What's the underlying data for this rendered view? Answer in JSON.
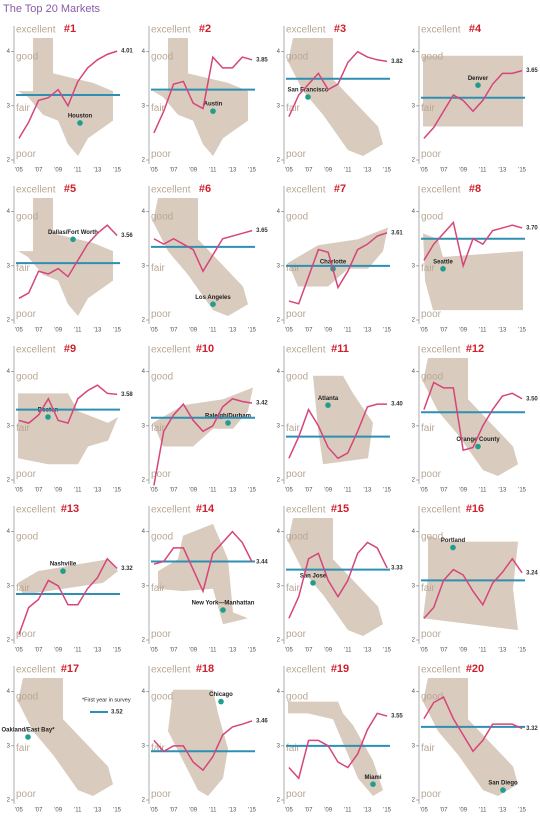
{
  "chart_data": {
    "type": "line",
    "title": "The Top 20 Markets",
    "x": [
      2005,
      2006,
      2007,
      2008,
      2009,
      2010,
      2011,
      2012,
      2013,
      2014,
      2015
    ],
    "xlim": [
      2004.5,
      2015.5
    ],
    "xticks": [
      {
        "value": 2005,
        "label": "'05"
      },
      {
        "value": 2007,
        "label": "'07"
      },
      {
        "value": 2009,
        "label": "'09"
      },
      {
        "value": 2011,
        "label": "'11"
      },
      {
        "value": 2013,
        "label": "'13"
      },
      {
        "value": 2015,
        "label": "'15"
      }
    ],
    "ylim": [
      2,
      4.4
    ],
    "yticks": [
      2,
      3,
      4
    ],
    "rating_labels": [
      {
        "value": 4.4,
        "label": "excellent"
      },
      {
        "value": 3.9,
        "label": "good"
      },
      {
        "value": 2.95,
        "label": "fair"
      },
      {
        "value": 2.1,
        "label": "poor"
      }
    ],
    "line_color": "#d6457a",
    "avg_color": "#2e8fb3",
    "dot_color": "#1f9e8e",
    "panels": [
      {
        "rank": "#1",
        "city": "Houston",
        "values": [
          2.4,
          2.7,
          3.1,
          3.15,
          3.3,
          3.0,
          3.45,
          3.7,
          3.85,
          3.95,
          4.01
        ],
        "label": "4.01",
        "avg": 3.2
      },
      {
        "rank": "#2",
        "city": "Austin",
        "values": [
          2.5,
          2.9,
          3.4,
          3.45,
          3.05,
          2.95,
          3.9,
          3.7,
          3.7,
          3.9,
          3.85
        ],
        "label": "3.85",
        "avg": 3.3
      },
      {
        "rank": "#3",
        "city": "San Francisco",
        "values": [
          2.8,
          3.2,
          3.4,
          3.6,
          3.3,
          3.4,
          3.8,
          4.0,
          3.9,
          3.85,
          3.82
        ],
        "label": "3.82",
        "avg": 3.5
      },
      {
        "rank": "#4",
        "city": "Denver",
        "values": [
          2.4,
          2.6,
          2.9,
          3.2,
          3.1,
          2.9,
          3.1,
          3.4,
          3.6,
          3.6,
          3.65
        ],
        "label": "3.65",
        "avg": 3.15
      },
      {
        "rank": "#5",
        "city": "Dallas/Fort Worth",
        "values": [
          2.4,
          2.5,
          2.9,
          2.85,
          2.95,
          2.8,
          3.1,
          3.4,
          3.6,
          3.75,
          3.56
        ],
        "label": "3.56",
        "avg": 3.05
      },
      {
        "rank": "#6",
        "city": "Los Angeles",
        "values": [
          3.5,
          3.4,
          3.5,
          3.4,
          3.3,
          2.9,
          3.2,
          3.5,
          3.55,
          3.6,
          3.65
        ],
        "label": "3.65",
        "avg": 3.35
      },
      {
        "rank": "#7",
        "city": "Charlotte",
        "values": [
          2.35,
          2.3,
          2.8,
          3.3,
          3.25,
          2.6,
          2.9,
          3.3,
          3.4,
          3.55,
          3.61
        ],
        "label": "3.61",
        "avg": 3.0
      },
      {
        "rank": "#8",
        "city": "Seattle",
        "values": [
          3.1,
          3.4,
          3.6,
          3.8,
          3.0,
          3.5,
          3.4,
          3.65,
          3.7,
          3.75,
          3.7
        ],
        "label": "3.70",
        "avg": 3.5
      },
      {
        "rank": "#9",
        "city": "Boston",
        "values": [
          3.1,
          3.05,
          3.2,
          3.5,
          3.1,
          3.05,
          3.5,
          3.65,
          3.75,
          3.6,
          3.58
        ],
        "label": "3.58",
        "avg": 3.3
      },
      {
        "rank": "#10",
        "city": "Raleigh/Durham",
        "values": [
          1.9,
          2.9,
          3.2,
          3.4,
          3.1,
          2.9,
          3.0,
          3.35,
          3.5,
          3.45,
          3.42
        ],
        "label": "3.42",
        "avg": 3.15
      },
      {
        "rank": "#11",
        "city": "Atlanta",
        "values": [
          2.4,
          2.8,
          3.3,
          3.0,
          2.6,
          2.4,
          2.5,
          2.9,
          3.35,
          3.4,
          3.4
        ],
        "label": "3.40",
        "avg": 2.8
      },
      {
        "rank": "#12",
        "city": "Orange County",
        "values": [
          3.3,
          3.8,
          3.7,
          3.7,
          2.55,
          2.6,
          3.0,
          3.3,
          3.55,
          3.6,
          3.5
        ],
        "label": "3.50",
        "avg": 3.25
      },
      {
        "rank": "#13",
        "city": "Nashville",
        "values": [
          2.1,
          2.6,
          2.75,
          3.1,
          3.0,
          2.65,
          2.65,
          2.95,
          3.15,
          3.5,
          3.32
        ],
        "label": "3.32",
        "avg": 2.85
      },
      {
        "rank": "#14",
        "city": "New York—Manhattan",
        "values": [
          3.4,
          3.45,
          3.7,
          3.7,
          3.3,
          2.9,
          3.6,
          3.8,
          4.0,
          3.8,
          3.44
        ],
        "label": "3.44",
        "avg": 3.45
      },
      {
        "rank": "#15",
        "city": "San Jose",
        "values": [
          2.4,
          2.8,
          3.5,
          3.6,
          3.1,
          2.8,
          3.1,
          3.6,
          3.8,
          3.7,
          3.33
        ],
        "label": "3.33",
        "avg": 3.3
      },
      {
        "rank": "#16",
        "city": "Portland",
        "values": [
          2.4,
          2.6,
          3.1,
          3.3,
          3.2,
          2.9,
          2.65,
          3.05,
          3.25,
          3.5,
          3.24
        ],
        "label": "3.24",
        "avg": 3.1
      },
      {
        "rank": "#17",
        "city": "Oakland/East Bay*",
        "values": [
          null,
          null,
          null,
          null,
          null,
          null,
          null,
          null,
          null,
          null,
          null
        ],
        "label": "3.52",
        "avg": 3.52,
        "note": "*First year in survey"
      },
      {
        "rank": "#18",
        "city": "Chicago",
        "values": [
          3.1,
          2.9,
          3.0,
          3.0,
          2.7,
          2.55,
          2.8,
          3.2,
          3.35,
          3.4,
          3.46
        ],
        "label": "3.46",
        "avg": 2.9
      },
      {
        "rank": "#19",
        "city": "Miami",
        "values": [
          2.6,
          2.4,
          3.1,
          3.1,
          3.0,
          2.7,
          2.6,
          2.85,
          3.3,
          3.6,
          3.55
        ],
        "label": "3.55",
        "avg": 3.0
      },
      {
        "rank": "#20",
        "city": "San Diego",
        "values": [
          3.5,
          3.8,
          3.9,
          3.5,
          3.2,
          2.9,
          3.1,
          3.4,
          3.4,
          3.4,
          3.32
        ],
        "label": "3.32",
        "avg": 3.35
      }
    ]
  }
}
